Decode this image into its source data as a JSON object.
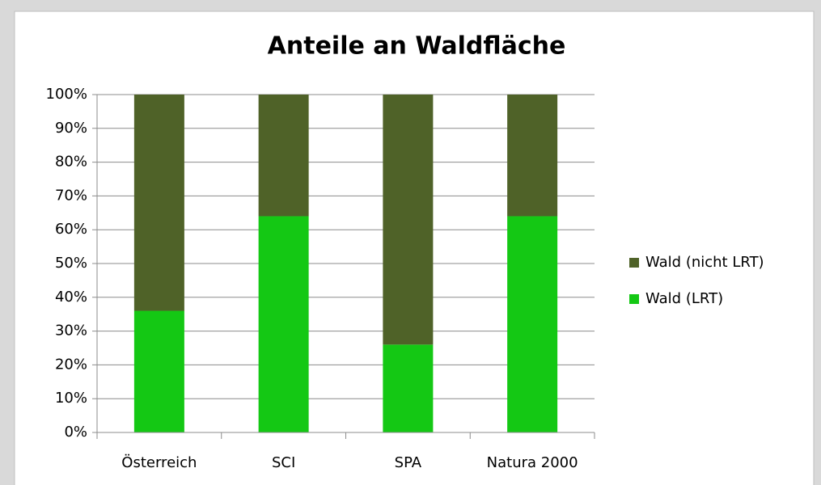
{
  "chart_data": {
    "type": "stacked_bar",
    "title": "Anteile an Waldfläche",
    "categories": [
      "Österreich",
      "SCI",
      "SPA",
      "Natura 2000"
    ],
    "series": [
      {
        "name": "Wald (LRT)",
        "color": "#14c814",
        "values": [
          36,
          64,
          26,
          64
        ]
      },
      {
        "name": "Wald (nicht LRT)",
        "color": "#4f6228",
        "values": [
          64,
          36,
          74,
          36
        ]
      }
    ],
    "ylim": [
      0,
      100
    ],
    "yticks": [
      {
        "value": 0,
        "label": "0%"
      },
      {
        "value": 10,
        "label": "10%"
      },
      {
        "value": 20,
        "label": "20%"
      },
      {
        "value": 30,
        "label": "30%"
      },
      {
        "value": 40,
        "label": "40%"
      },
      {
        "value": 50,
        "label": "50%"
      },
      {
        "value": 60,
        "label": "60%"
      },
      {
        "value": 70,
        "label": "70%"
      },
      {
        "value": 80,
        "label": "80%"
      },
      {
        "value": 90,
        "label": "90%"
      },
      {
        "value": 100,
        "label": "100%"
      }
    ],
    "grid": true,
    "legend": "right"
  }
}
